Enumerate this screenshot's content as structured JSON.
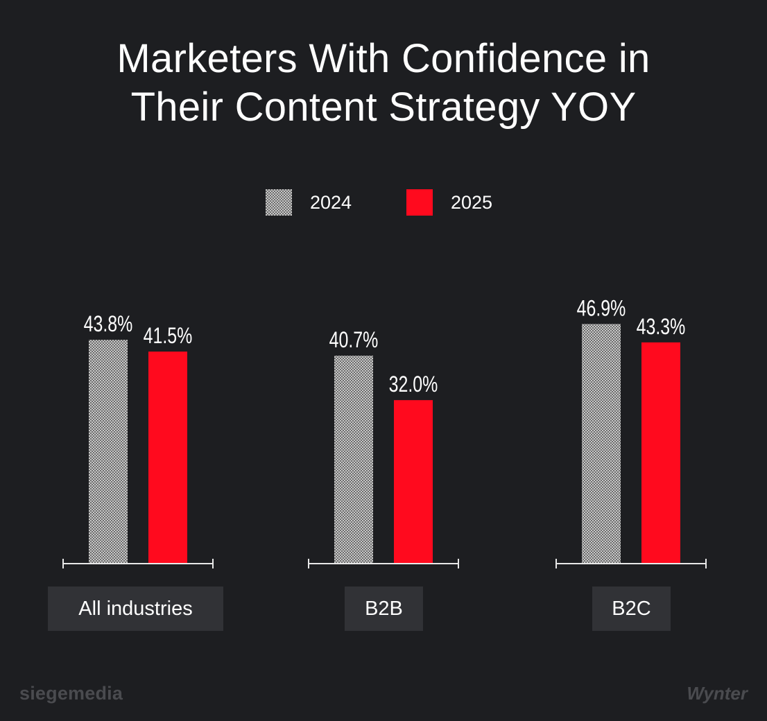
{
  "chart_data": {
    "type": "bar",
    "title_lines": [
      "Marketers With Confidence in",
      "Their Content Strategy YOY"
    ],
    "categories": [
      "All industries",
      "B2B",
      "B2C"
    ],
    "series": [
      {
        "name": "2024",
        "values": [
          43.8,
          40.7,
          46.9
        ],
        "labels": [
          "43.8%",
          "40.7%",
          "46.9%"
        ],
        "color": "#9a9a9a",
        "pattern": "dotted-gray"
      },
      {
        "name": "2025",
        "values": [
          41.5,
          32.0,
          43.3
        ],
        "labels": [
          "41.5%",
          "32.0%",
          "43.3%"
        ],
        "color": "#ff0a1e"
      }
    ],
    "unit": "%",
    "legend_position": "top-center",
    "grid": false
  },
  "footer": {
    "left_watermark": "siegemedia",
    "right_watermark": "Wynter"
  }
}
